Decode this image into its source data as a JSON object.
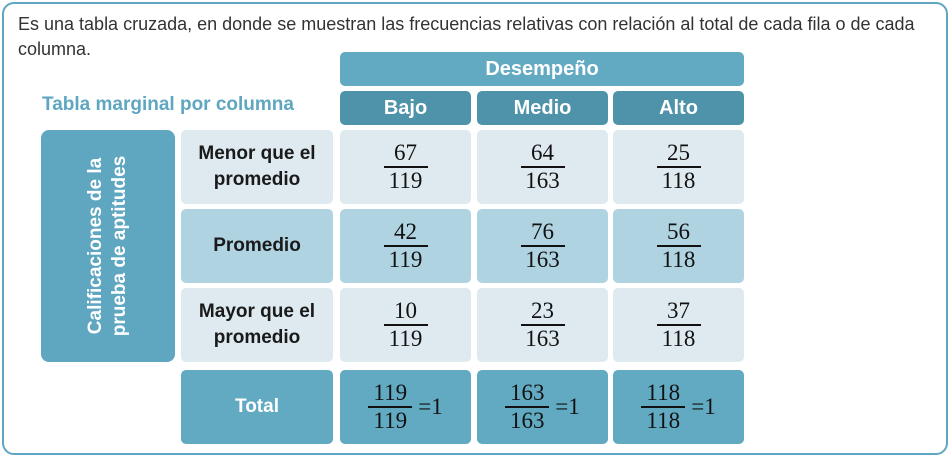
{
  "intro_text": "Es una tabla cruzada, en donde se muestran las frecuencias relativas con relación al total de cada fila o de cada columna.",
  "marginal_title": "Tabla marginal por columna",
  "performance_header": "Desempeño",
  "columns": [
    "Bajo",
    "Medio",
    "Alto"
  ],
  "side_label": "Calificaciones de la prueba de aptitudes",
  "rows": [
    {
      "label": "Menor que el promedio",
      "cells": [
        {
          "num": "67",
          "den": "119"
        },
        {
          "num": "64",
          "den": "163"
        },
        {
          "num": "25",
          "den": "118"
        }
      ]
    },
    {
      "label": "Promedio",
      "cells": [
        {
          "num": "42",
          "den": "119"
        },
        {
          "num": "76",
          "den": "163"
        },
        {
          "num": "56",
          "den": "118"
        }
      ]
    },
    {
      "label": "Mayor que el promedio",
      "cells": [
        {
          "num": "10",
          "den": "119"
        },
        {
          "num": "23",
          "den": "163"
        },
        {
          "num": "37",
          "den": "118"
        }
      ]
    }
  ],
  "total": {
    "label": "Total",
    "cells": [
      {
        "num": "119",
        "den": "119",
        "eq": "=1"
      },
      {
        "num": "163",
        "den": "163",
        "eq": "=1"
      },
      {
        "num": "118",
        "den": "118",
        "eq": "=1"
      }
    ]
  },
  "colors": {
    "frame": "#5ea6c1",
    "header": "#4f93aa",
    "header_wide": "#62a9c2",
    "light": "#deeaf0",
    "mid": "#b0d3e1"
  }
}
